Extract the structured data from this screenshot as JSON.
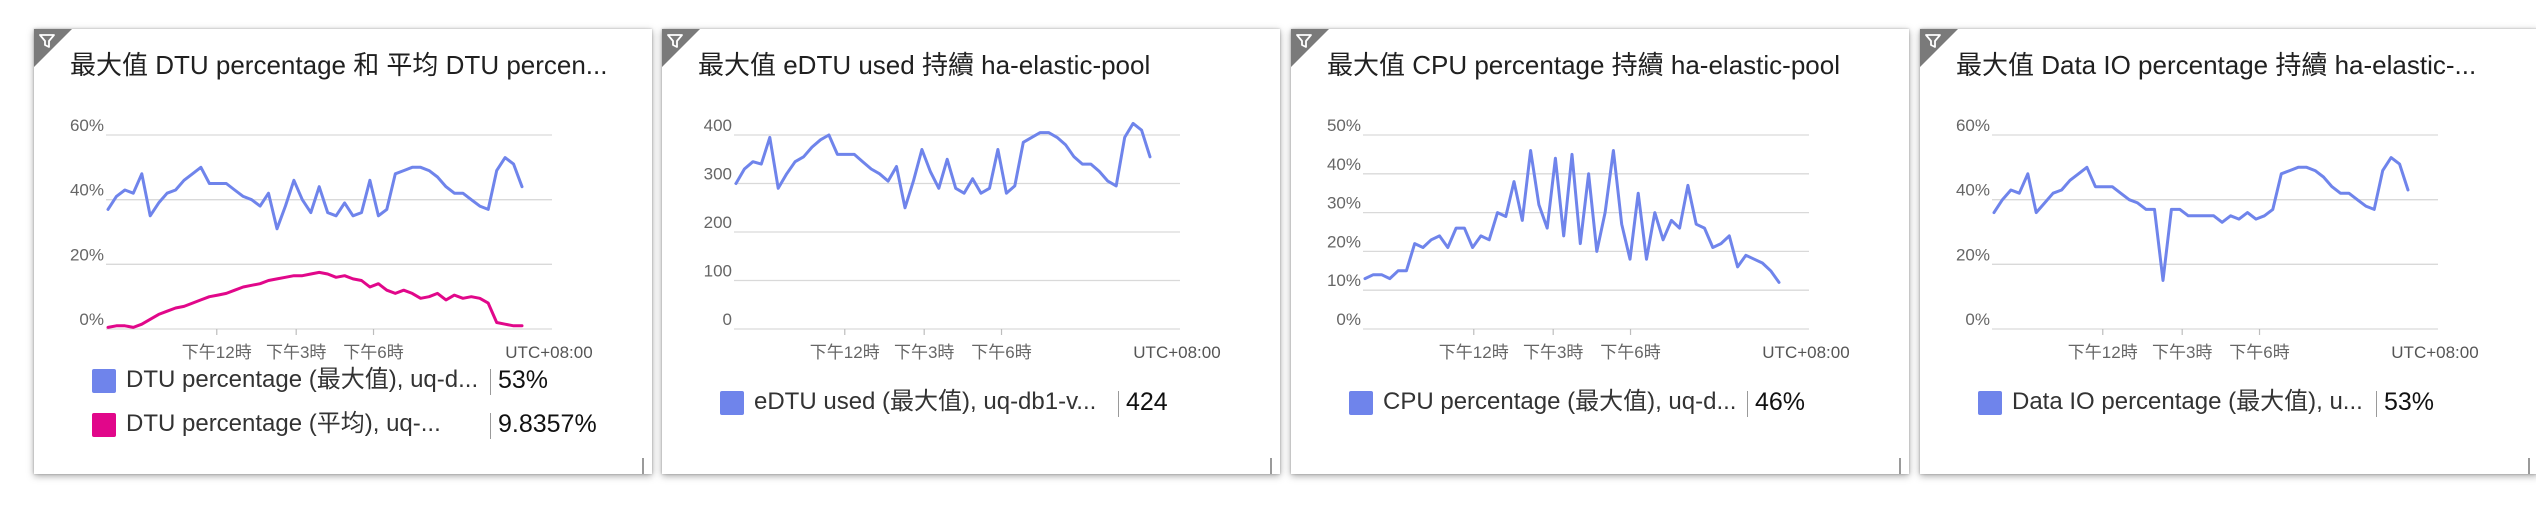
{
  "tiles": [
    {
      "title": "最大值 DTU percentage 和 平均 DTU percen...",
      "legend": [
        {
          "label": "DTU percentage (最大值), uq-d...",
          "value": "53%",
          "color": "#6f84eb"
        },
        {
          "label": "DTU percentage (平均), uq-...",
          "value": "9.8357%",
          "color": "#e1078a"
        }
      ]
    },
    {
      "title": "最大值 eDTU used 持續 ha-elastic-pool",
      "legend": [
        {
          "label": "eDTU used (最大值), uq-db1-v...",
          "value": "424",
          "color": "#6f84eb"
        }
      ]
    },
    {
      "title": "最大值 CPU percentage 持續 ha-elastic-pool",
      "legend": [
        {
          "label": "CPU percentage (最大值), uq-d...",
          "value": "46%",
          "color": "#6f84eb"
        }
      ]
    },
    {
      "title": "最大值 Data IO percentage 持續 ha-elastic-...",
      "legend": [
        {
          "label": "Data IO percentage (最大值), u...",
          "value": "53%",
          "color": "#6f84eb"
        }
      ]
    }
  ],
  "chart_data": [
    {
      "type": "line",
      "title": "最大值 DTU percentage 和 平均 DTU percen...",
      "ylim": [
        0,
        60
      ],
      "yticks": [
        0,
        20,
        40,
        60
      ],
      "ytick_labels": [
        "0%",
        "20%",
        "40%",
        "60%"
      ],
      "xtick_labels": [
        "下午12時",
        "下午3時",
        "下午6時"
      ],
      "timezone_label": "UTC+08:00",
      "grid": true,
      "series": [
        {
          "name": "DTU percentage (最大值), uq-d...",
          "color": "#6f84eb",
          "values": [
            37,
            41,
            43,
            42,
            48,
            35,
            39,
            42,
            43,
            46,
            48,
            50,
            45,
            45,
            45,
            43,
            41,
            40,
            38,
            42,
            31,
            38,
            46,
            40,
            36,
            44,
            36,
            35,
            39,
            35,
            36,
            46,
            35,
            37,
            48,
            49,
            50,
            50,
            49,
            47,
            44,
            42,
            42,
            40,
            38,
            37,
            49,
            53,
            51,
            44
          ]
        },
        {
          "name": "DTU percentage (平均), uq-...",
          "color": "#e1078a",
          "values": [
            0.5,
            1,
            1,
            0.5,
            1.5,
            3,
            4.5,
            5.5,
            6.5,
            7,
            8,
            9,
            10,
            10.5,
            11,
            12,
            13,
            13.5,
            14,
            15,
            15.5,
            16,
            16.5,
            16.5,
            17,
            17.5,
            17,
            16,
            16.5,
            15.5,
            15,
            13,
            14,
            12,
            11,
            12,
            11,
            9.5,
            10,
            11,
            9,
            10.5,
            9.5,
            10,
            9.5,
            8,
            2,
            1.5,
            1,
            1
          ]
        }
      ]
    },
    {
      "type": "line",
      "title": "最大值 eDTU used 持續 ha-elastic-pool",
      "ylim": [
        0,
        400
      ],
      "yticks": [
        0,
        100,
        200,
        300,
        400
      ],
      "ytick_labels": [
        "0",
        "100",
        "200",
        "300",
        "400"
      ],
      "xtick_labels": [
        "下午12時",
        "下午3時",
        "下午6時"
      ],
      "timezone_label": "UTC+08:00",
      "grid": true,
      "series": [
        {
          "name": "eDTU used (最大值), uq-db1-v...",
          "color": "#6f84eb",
          "values": [
            300,
            330,
            345,
            340,
            395,
            290,
            320,
            345,
            355,
            375,
            390,
            400,
            360,
            360,
            360,
            345,
            330,
            320,
            305,
            335,
            250,
            305,
            370,
            325,
            290,
            350,
            290,
            280,
            310,
            280,
            290,
            370,
            280,
            295,
            385,
            395,
            405,
            405,
            395,
            380,
            355,
            340,
            340,
            325,
            305,
            295,
            395,
            424,
            410,
            355
          ]
        }
      ]
    },
    {
      "type": "line",
      "title": "最大值 CPU percentage 持續 ha-elastic-pool",
      "ylim": [
        0,
        50
      ],
      "yticks": [
        0,
        10,
        20,
        30,
        40,
        50
      ],
      "ytick_labels": [
        "0%",
        "10%",
        "20%",
        "30%",
        "40%",
        "50%"
      ],
      "xtick_labels": [
        "下午12時",
        "下午3時",
        "下午6時"
      ],
      "timezone_label": "UTC+08:00",
      "grid": true,
      "series": [
        {
          "name": "CPU percentage (最大值), uq-d...",
          "color": "#6f84eb",
          "values": [
            13,
            14,
            14,
            13,
            15,
            15,
            22,
            21,
            23,
            24,
            21,
            26,
            26,
            21,
            24,
            23,
            30,
            29,
            38,
            28,
            46,
            32,
            26,
            44,
            24,
            45,
            22,
            40,
            20,
            30,
            46,
            27,
            18,
            35,
            18,
            30,
            23,
            28,
            26,
            37,
            27,
            26,
            21,
            22,
            24,
            16,
            19,
            18,
            17,
            15,
            12
          ]
        }
      ]
    },
    {
      "type": "line",
      "title": "最大值 Data IO percentage 持續 ha-elastic-...",
      "ylim": [
        0,
        60
      ],
      "yticks": [
        0,
        20,
        40,
        60
      ],
      "ytick_labels": [
        "0%",
        "20%",
        "40%",
        "60%"
      ],
      "xtick_labels": [
        "下午12時",
        "下午3時",
        "下午6時"
      ],
      "timezone_label": "UTC+08:00",
      "grid": true,
      "series": [
        {
          "name": "Data IO percentage (最大值), u...",
          "color": "#6f84eb",
          "values": [
            36,
            40,
            43,
            42,
            48,
            36,
            39,
            42,
            43,
            46,
            48,
            50,
            44,
            44,
            44,
            42,
            40,
            39,
            37,
            37,
            15,
            37,
            37,
            35,
            35,
            35,
            35,
            33,
            35,
            34,
            36,
            34,
            35,
            37,
            48,
            49,
            50,
            50,
            49,
            47,
            44,
            42,
            42,
            40,
            38,
            37,
            49,
            53,
            51,
            43
          ]
        }
      ]
    }
  ]
}
